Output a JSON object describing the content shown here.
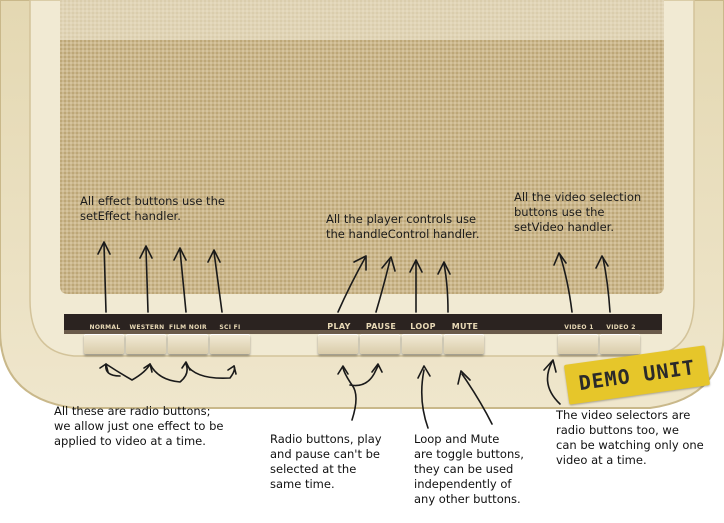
{
  "annotations": {
    "effect_handler": "All effect buttons use the\nsetEffect handler.",
    "control_handler": "All the player controls use\nthe handleControl handler.",
    "video_handler": "All the video selection\nbuttons use the\nsetVideo handler.",
    "radio_effects": "All these are radio buttons;\nwe allow just one effect to be\napplied to video at a time.",
    "play_pause": "Radio buttons, play\nand pause can't be\nselected at the\nsame time.",
    "loop_mute": "Loop and Mute\nare toggle buttons,\nthey can be used\nindependently of\nany other buttons.",
    "video_selectors": "The video selectors are\nradio buttons too, we\ncan be watching only one\nvideo at a time."
  },
  "effect_buttons": [
    "NORMAL",
    "WESTERN",
    "FILM NOIR",
    "SCI FI"
  ],
  "control_buttons": [
    "PLAY",
    "PAUSE",
    "LOOP",
    "MUTE"
  ],
  "video_buttons": [
    "VIDEO 1",
    "VIDEO 2"
  ],
  "stamp": "DEMO UNIT",
  "colors": {
    "cabinet": "#e9dfbf",
    "cabinet_edge": "#c9b88a",
    "speaker_cloth": "#c8b48a",
    "panel_strip": "#2b2320",
    "stamp": "#e6c62a"
  }
}
